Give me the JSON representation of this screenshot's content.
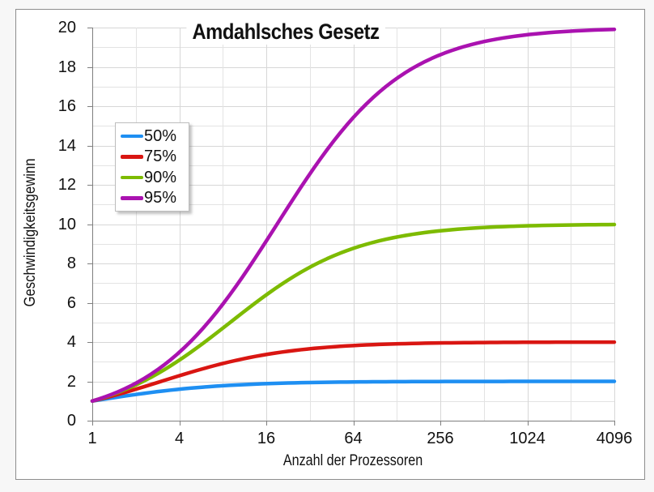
{
  "chart_data": {
    "type": "line",
    "title": "Amdahlsches Gesetz",
    "xlabel": "Anzahl der Prozessoren",
    "ylabel": "Geschwindigkeitsgewinn",
    "x_scale": "log2",
    "ylim": [
      0,
      20
    ],
    "y_tick_step": 2,
    "grid": true,
    "legend_position": "upper-left-inside",
    "x": [
      1,
      2,
      4,
      8,
      16,
      32,
      64,
      128,
      256,
      512,
      1024,
      2048,
      4096
    ],
    "x_ticks": [
      1,
      4,
      16,
      64,
      256,
      1024,
      4096
    ],
    "x_tick_labels": [
      "1",
      "4",
      "16",
      "64",
      "256",
      "1024",
      "4096"
    ],
    "y_tick_labels": [
      "0",
      "2",
      "4",
      "6",
      "8",
      "10",
      "12",
      "14",
      "16",
      "18",
      "20"
    ],
    "series": [
      {
        "name": "50%",
        "parallel_fraction": 0.5,
        "color": "#1e8ff2",
        "values": [
          1,
          1.333,
          1.6,
          1.778,
          1.882,
          1.939,
          1.969,
          1.984,
          1.992,
          1.996,
          1.998,
          1.999,
          2.0
        ]
      },
      {
        "name": "75%",
        "parallel_fraction": 0.75,
        "color": "#d91612",
        "values": [
          1,
          1.6,
          2.286,
          2.909,
          3.368,
          3.657,
          3.821,
          3.908,
          3.954,
          3.977,
          3.988,
          3.994,
          3.997
        ]
      },
      {
        "name": "90%",
        "parallel_fraction": 0.9,
        "color": "#7dbb00",
        "values": [
          1,
          1.818,
          3.077,
          4.706,
          6.4,
          7.805,
          8.767,
          9.343,
          9.66,
          9.827,
          9.913,
          9.956,
          9.978
        ]
      },
      {
        "name": "95%",
        "parallel_fraction": 0.95,
        "color": "#aa12b0",
        "values": [
          1,
          1.905,
          3.478,
          5.926,
          9.143,
          12.549,
          15.422,
          17.415,
          18.618,
          19.285,
          19.636,
          19.816,
          19.908
        ]
      }
    ],
    "colors": {
      "grid_major": "#d7d7d7",
      "grid_minor": "#e3e3e3",
      "axis": "#7f7f7f",
      "text": "#111111",
      "plot_background": "#ffffff",
      "page_background": "#f7f7f7"
    }
  }
}
